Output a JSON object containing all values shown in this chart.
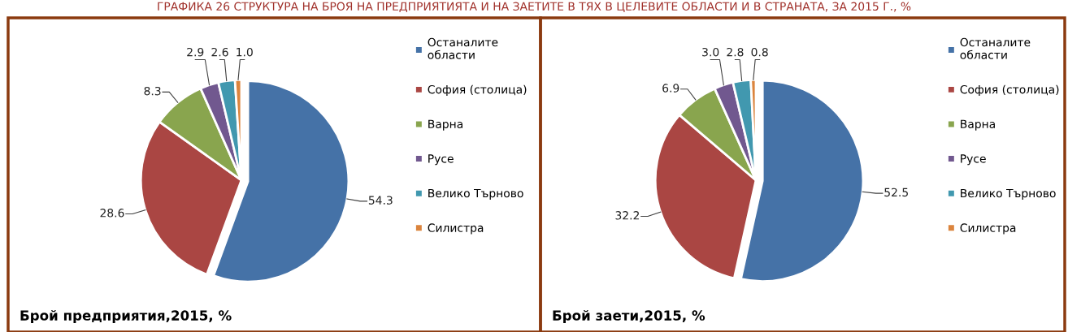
{
  "chart_data": [
    {
      "type": "pie",
      "title": "Брой предприятия,2015, %",
      "annotations": [
        "ГРАФИКА 26 СТРУКТУРА НА БРОЯ НА ПРЕДПРИЯТИЯТА И НА ЗАЕТИТЕ В ТЯХ В ЦЕЛЕВИТЕ ОБЛАСТИ И В СТРАНАТА, ЗА 2015 Г., %"
      ],
      "categories": [
        "Останалите области",
        "София (столица)",
        "Варна",
        "Русе",
        "Велико Търново",
        "Силистра"
      ],
      "values": [
        54.3,
        28.6,
        8.3,
        2.9,
        2.6,
        1.0
      ],
      "colors": [
        "#4572a7",
        "#aa4643",
        "#89a54e",
        "#71588f",
        "#4198af",
        "#db843d"
      ],
      "value_labels": [
        "54.3",
        "28.6",
        "8.3",
        "2.9",
        "2.6",
        "1.0"
      ],
      "legend": "right"
    },
    {
      "type": "pie",
      "title": "Брой заети,2015, %",
      "categories": [
        "Останалите области",
        "София (столица)",
        "Варна",
        "Русе",
        "Велико Търново",
        "Силистра"
      ],
      "values": [
        52.5,
        32.2,
        6.9,
        3.0,
        2.8,
        0.8
      ],
      "colors": [
        "#4572a7",
        "#aa4643",
        "#89a54e",
        "#71588f",
        "#4198af",
        "#db843d"
      ],
      "value_labels": [
        "52.5",
        "32.2",
        "6.9",
        "3.0",
        "2.8",
        "0.8"
      ],
      "legend": "right"
    }
  ]
}
